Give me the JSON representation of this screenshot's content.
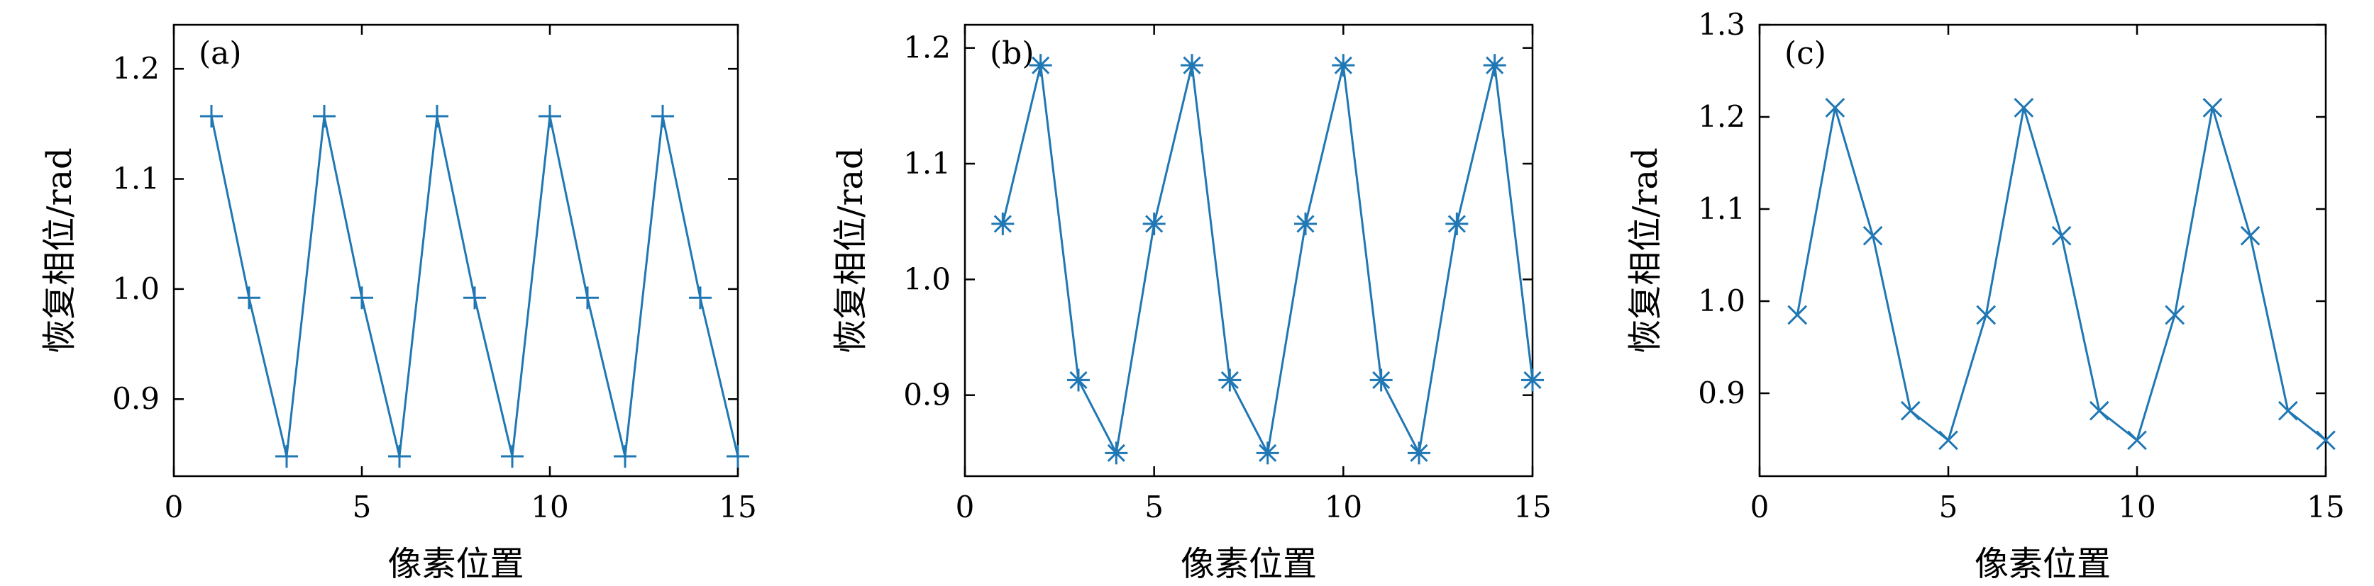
{
  "chart_data": [
    {
      "type": "line",
      "panel_label": "(a)",
      "xlabel": "像素位置",
      "ylabel": "恢复相位/rad",
      "xlim": [
        0,
        15
      ],
      "ylim": [
        0.83,
        1.24
      ],
      "xticks": [
        0,
        5,
        10,
        15
      ],
      "yticks": [
        0.9,
        1.0,
        1.1,
        1.2
      ],
      "ytick_labels": [
        "0.9",
        "1.0",
        "1.1",
        "1.2"
      ],
      "marker": "plus",
      "color": "#1f77b4",
      "series": [
        {
          "x": [
            1,
            2,
            3,
            4,
            5,
            6,
            7,
            8,
            9,
            10,
            11,
            12,
            13,
            14,
            15
          ],
          "values": [
            1.157,
            0.992,
            0.848,
            1.157,
            0.992,
            0.848,
            1.157,
            0.992,
            0.848,
            1.157,
            0.992,
            0.848,
            1.157,
            0.992,
            0.848
          ]
        }
      ]
    },
    {
      "type": "line",
      "panel_label": "(b)",
      "xlabel": "像素位置",
      "ylabel": "恢复相位/rad",
      "xlim": [
        0,
        15
      ],
      "ylim": [
        0.83,
        1.22
      ],
      "xticks": [
        0,
        5,
        10,
        15
      ],
      "yticks": [
        0.9,
        1.0,
        1.1,
        1.2
      ],
      "ytick_labels": [
        "0.9",
        "1.0",
        "1.1",
        "1.2"
      ],
      "marker": "asterisk",
      "color": "#1f77b4",
      "series": [
        {
          "x": [
            1,
            2,
            3,
            4,
            5,
            6,
            7,
            8,
            9,
            10,
            11,
            12,
            13,
            14,
            15
          ],
          "values": [
            1.048,
            1.185,
            0.913,
            0.85,
            1.048,
            1.185,
            0.913,
            0.85,
            1.048,
            1.185,
            0.913,
            0.85,
            1.048,
            1.185,
            0.913
          ]
        }
      ]
    },
    {
      "type": "line",
      "panel_label": "(c)",
      "xlabel": "像素位置",
      "ylabel": "恢复相位/rad",
      "xlim": [
        0,
        15
      ],
      "ylim": [
        0.81,
        1.3
      ],
      "xticks": [
        0,
        5,
        10,
        15
      ],
      "yticks": [
        0.9,
        1.0,
        1.1,
        1.2,
        1.3
      ],
      "ytick_labels": [
        "0.9",
        "1.0",
        "1.1",
        "1.2",
        "1.3"
      ],
      "marker": "x",
      "color": "#1f77b4",
      "series": [
        {
          "x": [
            1,
            2,
            3,
            4,
            5,
            6,
            7,
            8,
            9,
            10,
            11,
            12,
            13,
            14,
            15
          ],
          "values": [
            0.985,
            1.21,
            1.071,
            0.881,
            0.849,
            0.985,
            1.21,
            1.071,
            0.881,
            0.849,
            0.985,
            1.21,
            1.071,
            0.881,
            0.849
          ]
        }
      ]
    }
  ]
}
